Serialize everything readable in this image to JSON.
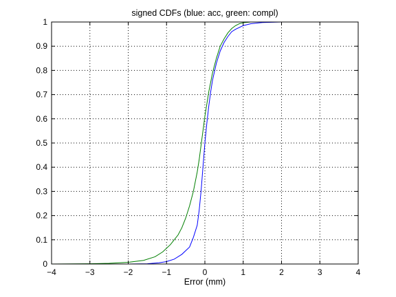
{
  "chart_data": {
    "type": "line",
    "title": "signed CDFs (blue: acc, green: compl)",
    "xlabel": "Error (mm)",
    "ylabel": "",
    "xlim": [
      -4,
      4
    ],
    "ylim": [
      0,
      1
    ],
    "xticks": [
      -4,
      -3,
      -2,
      -1,
      0,
      1,
      2,
      3,
      4
    ],
    "yticks": [
      0,
      0.1,
      0.2,
      0.3,
      0.4,
      0.5,
      0.6,
      0.7,
      0.8,
      0.9,
      1
    ],
    "xtick_labels": [
      "−4",
      "−3",
      "−2",
      "−1",
      "0",
      "1",
      "2",
      "3",
      "4"
    ],
    "ytick_labels": [
      "0",
      "0.1",
      "0.2",
      "0.3",
      "0.4",
      "0.5",
      "0.6",
      "0.7",
      "0.8",
      "0.9",
      "1"
    ],
    "grid": true,
    "grid_style": "dotted",
    "series": [
      {
        "color": "#0000ff",
        "x": [
          -4,
          -2.0,
          -1.5,
          -1.2,
          -1.0,
          -0.8,
          -0.6,
          -0.4,
          -0.3,
          -0.2,
          -0.15,
          -0.1,
          -0.05,
          0.0,
          0.05,
          0.1,
          0.15,
          0.2,
          0.3,
          0.4,
          0.5,
          0.6,
          0.7,
          0.8,
          1.0,
          1.2,
          1.5,
          2.0,
          4
        ],
        "y": [
          0,
          0,
          0.001,
          0.005,
          0.01,
          0.02,
          0.04,
          0.07,
          0.11,
          0.16,
          0.22,
          0.3,
          0.4,
          0.5,
          0.58,
          0.65,
          0.71,
          0.76,
          0.83,
          0.88,
          0.915,
          0.94,
          0.96,
          0.97,
          0.985,
          0.993,
          0.998,
          1.0,
          1.0
        ]
      },
      {
        "color": "#007f00",
        "x": [
          -4,
          -3.0,
          -2.5,
          -2.0,
          -1.6,
          -1.3,
          -1.1,
          -0.9,
          -0.7,
          -0.6,
          -0.5,
          -0.4,
          -0.3,
          -0.2,
          -0.15,
          -0.1,
          -0.05,
          0.0,
          0.05,
          0.1,
          0.15,
          0.2,
          0.3,
          0.4,
          0.5,
          0.6,
          0.7,
          0.8,
          0.9,
          1.0,
          1.2,
          1.5,
          4
        ],
        "y": [
          0,
          0.001,
          0.003,
          0.007,
          0.015,
          0.03,
          0.05,
          0.08,
          0.12,
          0.15,
          0.19,
          0.24,
          0.3,
          0.38,
          0.43,
          0.49,
          0.55,
          0.61,
          0.66,
          0.71,
          0.75,
          0.79,
          0.85,
          0.9,
          0.93,
          0.955,
          0.973,
          0.985,
          0.993,
          0.997,
          1.0,
          1.0,
          1.0
        ]
      }
    ]
  }
}
